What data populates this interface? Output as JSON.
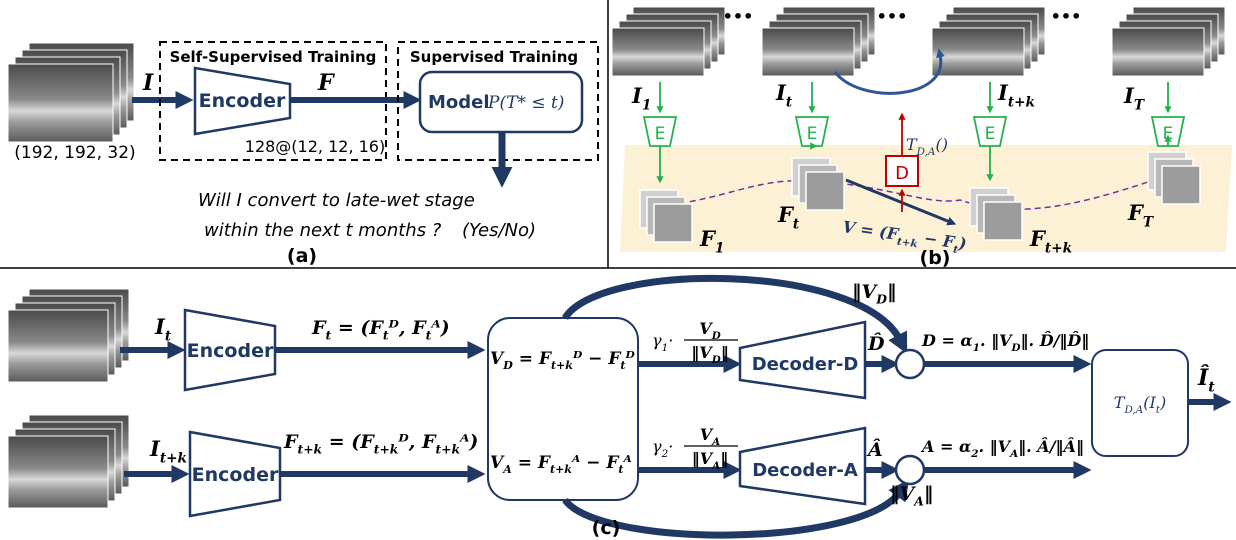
{
  "panel_a": {
    "label": "(a)",
    "input": "I",
    "input_size": "(192, 192, 32)",
    "self_supervised_title": "Self-Supervised Training",
    "supervised_title": "Supervised Training",
    "encoder": "Encoder",
    "feature": "F",
    "feature_size": "128@(12, 12, 16)",
    "model": "Model",
    "model_formula": "P(T* ≤ t)",
    "question_line1": "Will I convert to late-wet stage",
    "question_line2": "within the next t months ?",
    "answer": "(Yes/No)"
  },
  "panel_b": {
    "label": "(b)",
    "images": [
      [
        "I",
        "1"
      ],
      [
        "I",
        "t"
      ],
      [
        "I",
        "t+k"
      ],
      [
        "I",
        "T"
      ]
    ],
    "ellipsis": "•••",
    "encoder": "E",
    "features": [
      [
        "F",
        "1"
      ],
      [
        "F",
        "t"
      ],
      [
        "F",
        "t+k"
      ],
      [
        "F",
        "T"
      ]
    ],
    "decoder": "D",
    "transform": [
      "T",
      "D,A",
      "()"
    ],
    "vector": [
      "V = (F",
      "t+k",
      " − F",
      "t",
      ")"
    ]
  },
  "panel_c": {
    "label": "(c)",
    "inputs": [
      [
        "I",
        "t"
      ],
      [
        "I",
        "t+k"
      ]
    ],
    "encoder": "Encoder",
    "features": [
      [
        "F",
        "t",
        " = (F",
        "t",
        "ᴰ, F",
        "t",
        "ᴬ)"
      ],
      [
        "F",
        "t+k",
        " = (F",
        "t+k",
        "ᴰ, F",
        "t+k",
        "ᴬ)"
      ]
    ],
    "differences": [
      [
        "V",
        "D",
        " = F",
        "t+k",
        "ᴰ − F",
        "t",
        "ᴰ"
      ],
      [
        "V",
        "A",
        " = F",
        "t+k",
        "ᴬ − F",
        "t",
        "ᴬ"
      ]
    ],
    "scales": [
      [
        "γ",
        "1",
        "·"
      ],
      [
        "γ",
        "2",
        "·"
      ]
    ],
    "numerators": [
      [
        "V",
        "D"
      ],
      [
        "V",
        "A"
      ]
    ],
    "denominators": [
      [
        "‖V",
        "D",
        "‖"
      ],
      [
        "‖V",
        "A",
        "‖"
      ]
    ],
    "decoders": [
      "Decoder-D",
      "Decoder-A"
    ],
    "decoded": [
      "D̂",
      "Â"
    ],
    "norms": [
      [
        "‖V",
        "D",
        "‖"
      ],
      [
        "‖V",
        "A",
        "‖"
      ]
    ],
    "components": [
      [
        "D = α",
        "1",
        ". ‖V",
        "D",
        "‖. D̂/‖D̂‖"
      ],
      [
        "A = α",
        "2",
        ". ‖V",
        "A",
        "‖. Â/‖Â‖"
      ]
    ],
    "transform": [
      "T",
      "D,A",
      "(I",
      "t",
      ")"
    ],
    "output": [
      "Î",
      "t"
    ]
  }
}
